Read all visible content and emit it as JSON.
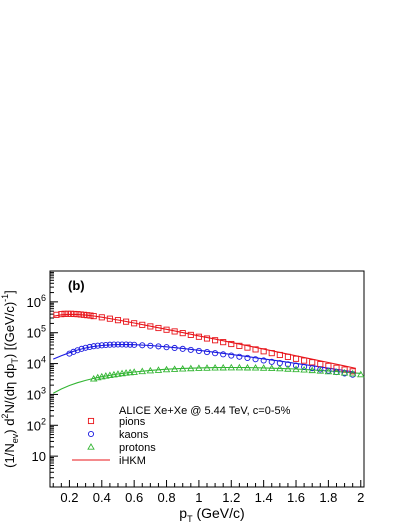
{
  "chart_data": {
    "type": "scatter",
    "panel_label": "(b)",
    "xlabel": "p_T (GeV/c)",
    "ylabel": "(1/N_ev) d^2N/(dη dp_T) [(GeV/c)^-1]",
    "xlim": [
      0.08,
      2.02
    ],
    "ylim": [
      1,
      10000000
    ],
    "log_y": true,
    "grid": false,
    "legend_title": "ALICE Xe+Xe @ 5.44 TeV, c=0-5%",
    "legend_placement": "lower-center",
    "x_ticks": [
      "0.2",
      "0.4",
      "0.6",
      "0.8",
      "1",
      "1.2",
      "1.4",
      "1.6",
      "1.8",
      "2"
    ],
    "y_ticks": [
      {
        "base": "10",
        "exp": ""
      },
      {
        "base": "10",
        "exp": "2"
      },
      {
        "base": "10",
        "exp": "3"
      },
      {
        "base": "10",
        "exp": "4"
      },
      {
        "base": "10",
        "exp": "5"
      },
      {
        "base": "10",
        "exp": "6"
      }
    ],
    "series": [
      {
        "name": "pions",
        "marker": "square",
        "color": "#e8141a",
        "x": [
          0.12,
          0.15,
          0.17,
          0.19,
          0.21,
          0.23,
          0.25,
          0.27,
          0.29,
          0.31,
          0.33,
          0.35,
          0.4,
          0.45,
          0.5,
          0.55,
          0.6,
          0.65,
          0.7,
          0.75,
          0.8,
          0.85,
          0.9,
          0.95,
          1.0,
          1.05,
          1.1,
          1.15,
          1.2,
          1.25,
          1.3,
          1.35,
          1.4,
          1.45,
          1.5,
          1.55,
          1.6,
          1.65,
          1.7,
          1.75,
          1.8,
          1.85,
          1.9,
          1.95
        ],
        "y": [
          380000,
          400000,
          410000,
          410000,
          410000,
          405000,
          400000,
          390000,
          380000,
          370000,
          360000,
          345000,
          315000,
          285000,
          255000,
          228000,
          202000,
          180000,
          160000,
          142000,
          125000,
          110000,
          97000,
          85000,
          74000,
          65000,
          57000,
          49500,
          43000,
          37500,
          33000,
          28800,
          25000,
          21800,
          19000,
          16500,
          14300,
          12500,
          11000,
          9600,
          8400,
          7300,
          6400,
          5600
        ]
      },
      {
        "name": "kaons",
        "marker": "circle",
        "color": "#1a1ae0",
        "x": [
          0.2,
          0.225,
          0.25,
          0.275,
          0.3,
          0.325,
          0.35,
          0.375,
          0.4,
          0.425,
          0.45,
          0.475,
          0.5,
          0.525,
          0.55,
          0.575,
          0.6,
          0.65,
          0.7,
          0.75,
          0.8,
          0.85,
          0.9,
          0.95,
          1.0,
          1.05,
          1.1,
          1.15,
          1.2,
          1.25,
          1.3,
          1.35,
          1.4,
          1.45,
          1.5,
          1.55,
          1.6,
          1.65,
          1.7,
          1.75,
          1.8,
          1.85,
          1.9,
          1.95
        ],
        "y": [
          21000,
          24000,
          27000,
          30000,
          32500,
          34500,
          36500,
          38000,
          39000,
          40000,
          40800,
          41300,
          41500,
          41500,
          41300,
          41000,
          40500,
          39200,
          37800,
          36000,
          34000,
          32000,
          30000,
          27800,
          25700,
          23600,
          21700,
          19900,
          18200,
          16600,
          15200,
          13800,
          12600,
          11400,
          10400,
          9500,
          8600,
          7800,
          7100,
          6450,
          5850,
          5300,
          4800,
          4350
        ]
      },
      {
        "name": "protons",
        "marker": "triangle",
        "color": "#33b533",
        "x": [
          0.35,
          0.375,
          0.4,
          0.425,
          0.45,
          0.475,
          0.5,
          0.525,
          0.55,
          0.575,
          0.6,
          0.65,
          0.7,
          0.75,
          0.8,
          0.85,
          0.9,
          0.95,
          1.0,
          1.05,
          1.1,
          1.15,
          1.2,
          1.25,
          1.3,
          1.35,
          1.4,
          1.45,
          1.5,
          1.55,
          1.6,
          1.65,
          1.7,
          1.75,
          1.8,
          1.85,
          1.9,
          1.95,
          2.0
        ],
        "y": [
          3200,
          3500,
          3750,
          3950,
          4150,
          4350,
          4550,
          4750,
          4950,
          5100,
          5250,
          5550,
          5850,
          6100,
          6350,
          6550,
          6750,
          6900,
          7050,
          7150,
          7250,
          7300,
          7350,
          7350,
          7300,
          7250,
          7150,
          7000,
          6850,
          6650,
          6450,
          6250,
          6000,
          5750,
          5500,
          5250,
          5000,
          4700,
          4400
        ]
      }
    ],
    "curves": [
      {
        "name": "iHKM",
        "color": "#e8141a",
        "x": [
          0.1,
          0.15,
          0.2,
          0.25,
          0.3,
          0.35,
          0.4,
          0.5,
          0.6,
          0.7,
          0.8,
          0.9,
          1.0,
          1.1,
          1.2,
          1.3,
          1.4,
          1.5,
          1.6,
          1.7,
          1.8,
          1.9,
          1.97
        ],
        "y": [
          340000,
          380000,
          392000,
          388000,
          372000,
          348000,
          318000,
          258000,
          206000,
          163000,
          129000,
          101000,
          79000,
          62000,
          48500,
          38000,
          29500,
          23000,
          17900,
          13900,
          10800,
          8400,
          7000
        ]
      },
      {
        "name": "kaons-model",
        "color": "#1a1ae0",
        "legend": false,
        "x": [
          0.1,
          0.15,
          0.2,
          0.25,
          0.3,
          0.35,
          0.4,
          0.45,
          0.5,
          0.55,
          0.6,
          0.7,
          0.8,
          0.9,
          1.0,
          1.1,
          1.2,
          1.3,
          1.4,
          1.5,
          1.6,
          1.7,
          1.8,
          1.9,
          1.97
        ],
        "y": [
          14000,
          18000,
          22500,
          27500,
          32000,
          35800,
          38600,
          40400,
          41300,
          41400,
          41000,
          38600,
          35000,
          31000,
          27000,
          23200,
          19800,
          16800,
          14200,
          12000,
          10100,
          8500,
          7100,
          5950,
          5200
        ]
      },
      {
        "name": "protons-model",
        "color": "#33b533",
        "legend": false,
        "x": [
          0.1,
          0.15,
          0.2,
          0.25,
          0.3,
          0.35,
          0.4,
          0.5,
          0.6,
          0.7,
          0.8,
          0.9,
          1.0,
          1.1,
          1.2,
          1.3,
          1.4,
          1.5,
          1.6,
          1.7,
          1.8,
          1.9,
          2.0
        ],
        "y": [
          1100,
          1500,
          1950,
          2400,
          2850,
          3300,
          3750,
          4600,
          5350,
          6000,
          6550,
          6950,
          7250,
          7400,
          7450,
          7400,
          7250,
          7000,
          6650,
          6250,
          5800,
          5300,
          4800
        ]
      }
    ]
  }
}
